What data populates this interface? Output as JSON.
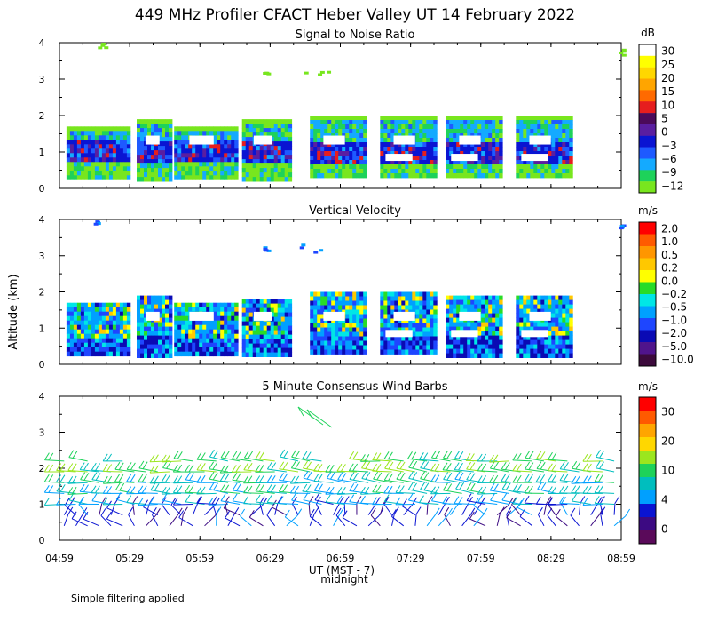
{
  "figure": {
    "title": "449 MHz Profiler CFACT Heber Valley UT 14 February 2022",
    "ylabel": "Altitude (km)",
    "xlabel": "UT  (MST - 7)",
    "midnight_label": "midnight",
    "note": "Simple filtering applied",
    "x_ticks": [
      "04:59",
      "05:29",
      "05:59",
      "06:29",
      "06:59",
      "07:29",
      "07:59",
      "08:29",
      "08:59"
    ],
    "y_ticks": [
      "0",
      "1",
      "2",
      "3",
      "4"
    ]
  },
  "chart_data": [
    {
      "type": "heatmap",
      "title": "Signal to Noise Ratio",
      "xlabel": "UT  (MST - 7)",
      "ylabel": "Altitude (km)",
      "x_range": [
        "04:59",
        "08:59"
      ],
      "ylim": [
        0,
        4
      ],
      "colorbar": {
        "unit": "dB",
        "labels": [
          "30",
          "25",
          "20",
          "15",
          "10",
          "5",
          "0",
          "−3",
          "−6",
          "−9",
          "−12"
        ],
        "colors": [
          "#ffffff",
          "#ffff00",
          "#ffd700",
          "#ffa500",
          "#ff6a00",
          "#e61e1e",
          "#4b0a5a",
          "#5a1ea0",
          "#0a14d2",
          "#1e5aff",
          "#14aaff",
          "#1ed25a",
          "#78e61e"
        ]
      },
      "blocks": [
        {
          "start": "05:02",
          "end": "05:29",
          "bottom_km": 0.3,
          "top_km": 1.7
        },
        {
          "start": "05:32",
          "end": "05:47",
          "bottom_km": 0.3,
          "top_km": 1.9
        },
        {
          "start": "05:48",
          "end": "06:14",
          "bottom_km": 0.3,
          "top_km": 1.7
        },
        {
          "start": "06:17",
          "end": "06:37",
          "bottom_km": 0.3,
          "top_km": 1.9
        },
        {
          "start": "06:46",
          "end": "07:09",
          "bottom_km": 0.3,
          "top_km": 2.0
        },
        {
          "start": "07:16",
          "end": "07:39",
          "bottom_km": 0.3,
          "top_km": 2.0
        },
        {
          "start": "07:44",
          "end": "08:07",
          "bottom_km": 0.3,
          "top_km": 2.0
        },
        {
          "start": "08:14",
          "end": "08:37",
          "bottom_km": 0.3,
          "top_km": 2.0
        }
      ]
    },
    {
      "type": "heatmap",
      "title": "Vertical Velocity",
      "xlabel": "UT  (MST - 7)",
      "ylabel": "Altitude (km)",
      "x_range": [
        "04:59",
        "08:59"
      ],
      "ylim": [
        0,
        4
      ],
      "colorbar": {
        "unit": "m/s",
        "labels": [
          "2.0",
          "1.0",
          "0.5",
          "0.2",
          "0.0",
          "−0.2",
          "−0.5",
          "−1.0",
          "−2.0",
          "−5.0",
          "−10.0"
        ],
        "colors": [
          "#ff0000",
          "#ff5a00",
          "#ff9600",
          "#ffc800",
          "#ffff00",
          "#28dc28",
          "#00e6e6",
          "#00a0ff",
          "#1e46ff",
          "#0a0ab4",
          "#50148c",
          "#3c0a3c"
        ]
      },
      "blocks": [
        {
          "start": "05:02",
          "end": "05:29",
          "bottom_km": 0.3,
          "top_km": 1.7
        },
        {
          "start": "05:32",
          "end": "05:47",
          "bottom_km": 0.3,
          "top_km": 1.9
        },
        {
          "start": "05:48",
          "end": "06:14",
          "bottom_km": 0.3,
          "top_km": 1.7
        },
        {
          "start": "06:17",
          "end": "06:37",
          "bottom_km": 0.3,
          "top_km": 1.8
        },
        {
          "start": "06:46",
          "end": "07:09",
          "bottom_km": 0.3,
          "top_km": 2.0
        },
        {
          "start": "07:16",
          "end": "07:39",
          "bottom_km": 0.3,
          "top_km": 2.0
        },
        {
          "start": "07:44",
          "end": "08:07",
          "bottom_km": 0.3,
          "top_km": 1.9
        },
        {
          "start": "08:14",
          "end": "08:37",
          "bottom_km": 0.3,
          "top_km": 1.9
        }
      ]
    },
    {
      "type": "scatter",
      "title": "5 Minute Consensus Wind Barbs",
      "xlabel": "UT  (MST - 7)",
      "ylabel": "Altitude (km)",
      "x_range": [
        "04:59",
        "08:59"
      ],
      "ylim": [
        0,
        4
      ],
      "barb_levels_km": [
        0.4,
        0.7,
        1.0,
        1.3,
        1.6,
        1.9,
        2.2
      ],
      "colorbar": {
        "unit": "m/s",
        "labels": [
          "30",
          "20",
          "10",
          "4",
          "0"
        ],
        "colors": [
          "#ff0000",
          "#ff5a00",
          "#ffa500",
          "#ffd700",
          "#9be61e",
          "#1ed25a",
          "#00bebe",
          "#00a0ff",
          "#0a14d2",
          "#3c0a82",
          "#5a0a5a"
        ]
      }
    }
  ]
}
